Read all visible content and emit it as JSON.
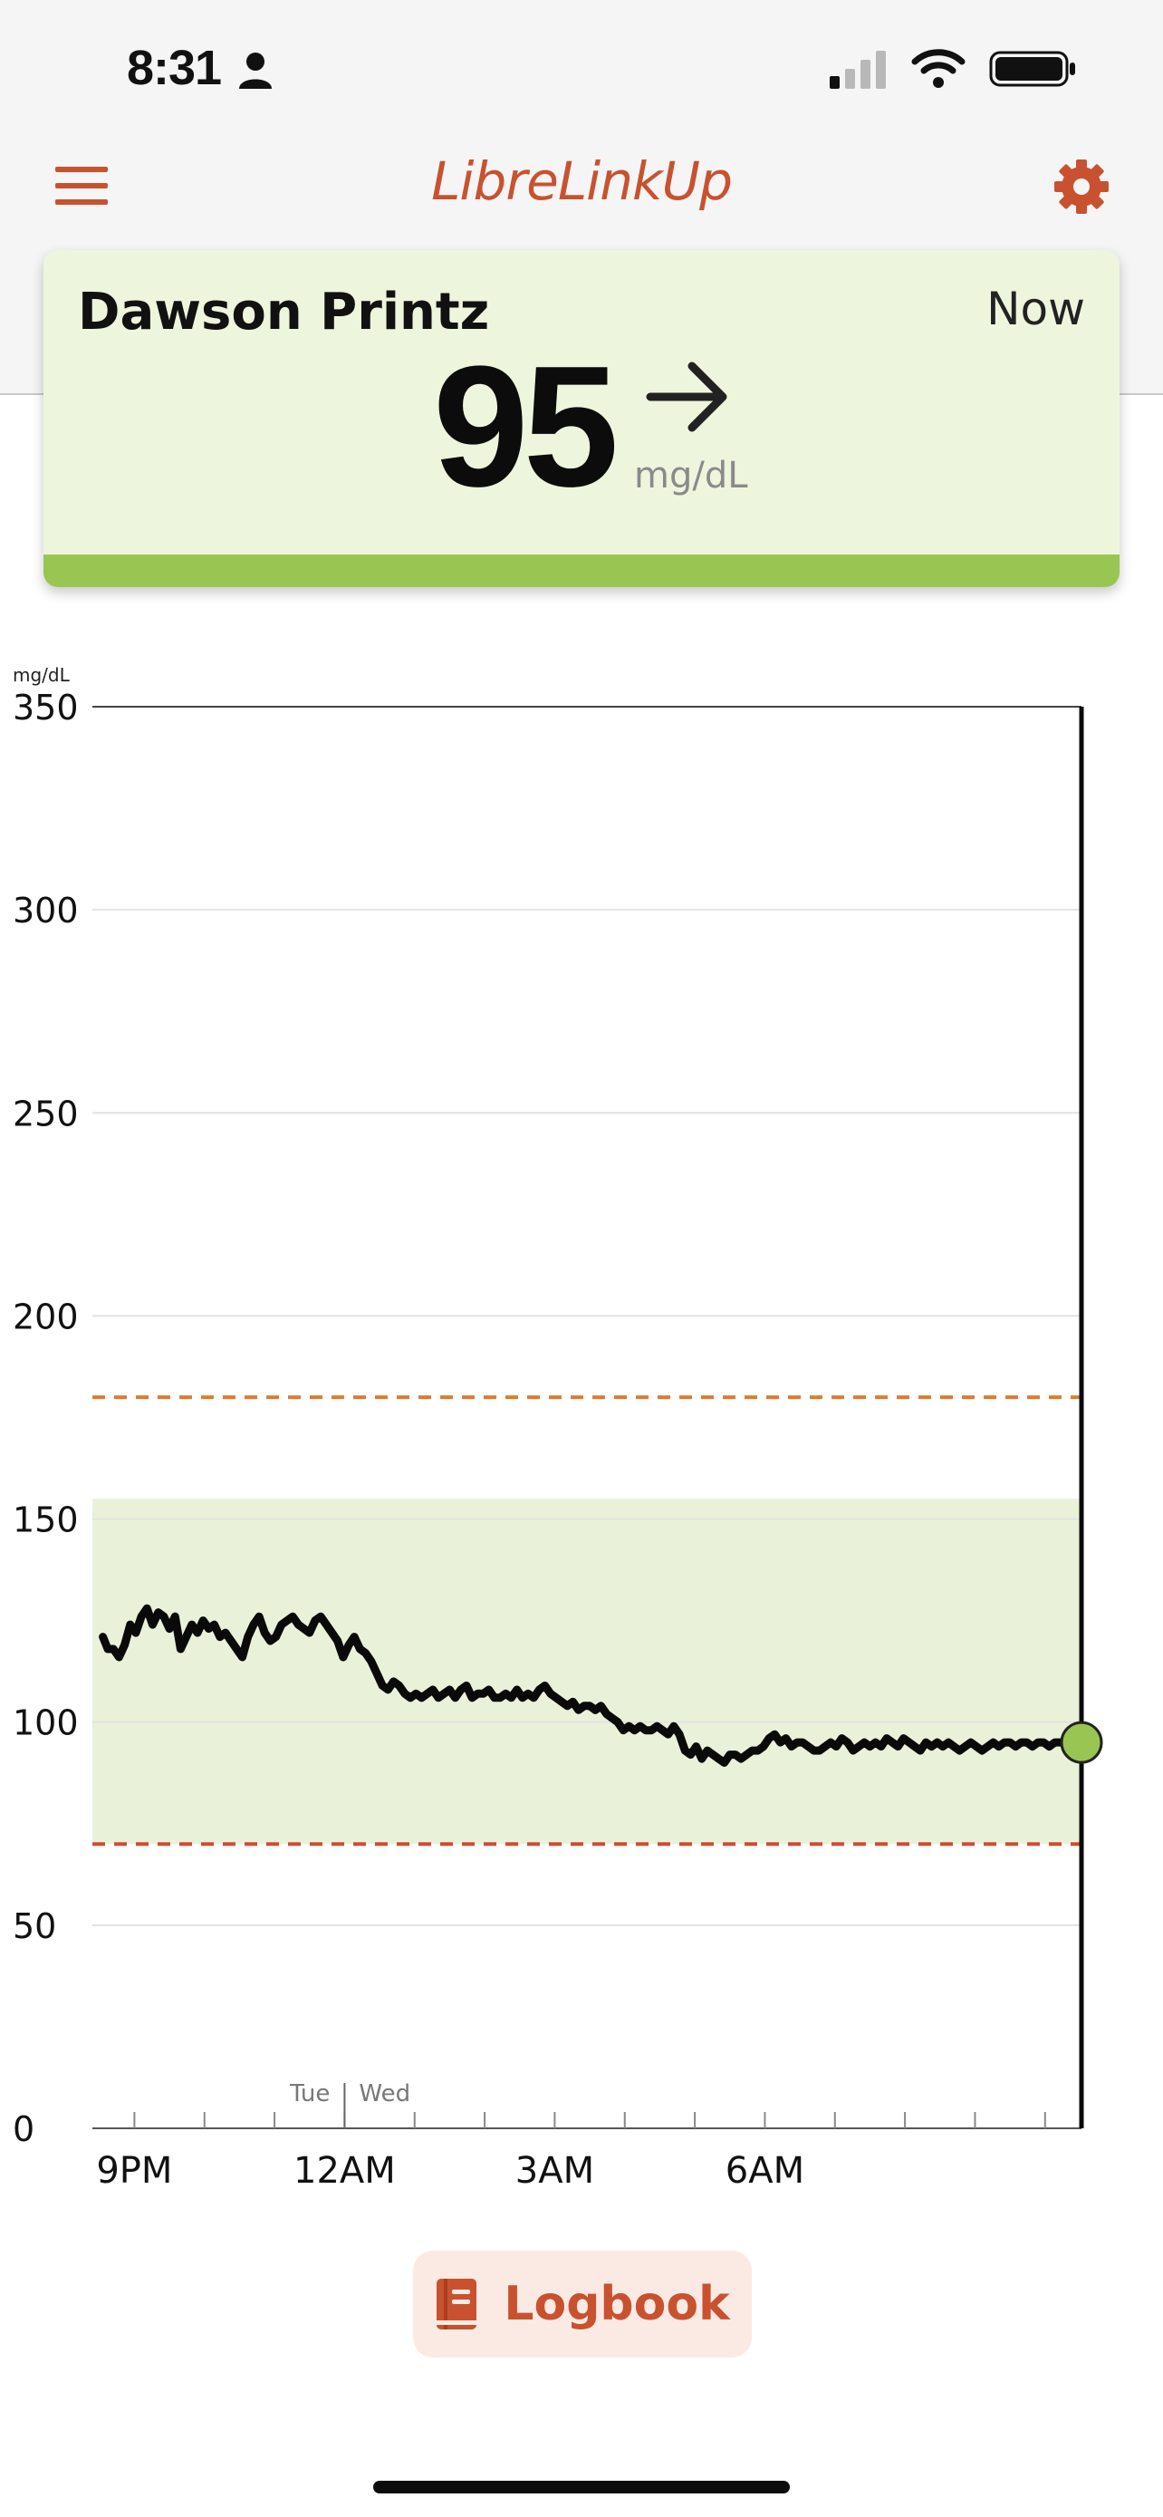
{
  "status_bar": {
    "time": "8:31",
    "battery_level": 1.0,
    "signal_bars_active": 1
  },
  "nav": {
    "title": "LibreLinkUp",
    "menu_icon": "hamburger-menu-icon",
    "settings_icon": "gear-icon"
  },
  "reading": {
    "name": "Dawson Printz",
    "time_label": "Now",
    "value": "95",
    "unit": "mg/dL",
    "trend_icon": "arrow-right-icon",
    "status_color": "#99c552"
  },
  "chart_data": {
    "type": "line",
    "ylabel": "mg/dL",
    "ylim": [
      0,
      350
    ],
    "yticks": [
      "350",
      "300",
      "250",
      "200",
      "150",
      "100",
      "50",
      "0"
    ],
    "xticks": [
      "9PM",
      "12AM",
      "3AM",
      "6AM"
    ],
    "day_labels": {
      "before": "Tue",
      "after": "Wed"
    },
    "target_range": [
      70,
      155
    ],
    "high_threshold": 180,
    "low_threshold": 70,
    "colors": {
      "line": "#0a0a0a",
      "target_band": "#e9f2d9",
      "high_line": "#e07a30",
      "low_line": "#d14a33",
      "current_point": "#99c552"
    },
    "x_hours": [
      20.55,
      20.62,
      20.7,
      20.78,
      20.86,
      20.94,
      21.02,
      21.1,
      21.18,
      21.26,
      21.34,
      21.42,
      21.5,
      21.58,
      21.66,
      21.74,
      21.82,
      21.9,
      21.98,
      22.06,
      22.14,
      22.22,
      22.3,
      22.38,
      22.46,
      22.54,
      22.62,
      22.7,
      22.78,
      22.86,
      22.94,
      23.02,
      23.1,
      23.18,
      23.26,
      23.34,
      23.42,
      23.5,
      23.58,
      23.66,
      23.74,
      23.82,
      23.9,
      23.98,
      24.06,
      24.14,
      24.22,
      24.3,
      24.38,
      24.46,
      24.54,
      24.62,
      24.7,
      24.78,
      24.86,
      24.94,
      25.02,
      25.1,
      25.18,
      25.26,
      25.34,
      25.42,
      25.5,
      25.58,
      25.66,
      25.74,
      25.82,
      25.9,
      25.98,
      26.06,
      26.14,
      26.22,
      26.3,
      26.38,
      26.46,
      26.54,
      26.62,
      26.7,
      26.78,
      26.86,
      26.94,
      27.02,
      27.1,
      27.18,
      27.26,
      27.34,
      27.42,
      27.5,
      27.58,
      27.66,
      27.74,
      27.82,
      27.9,
      27.98,
      28.06,
      28.14,
      28.22,
      28.3,
      28.38,
      28.46,
      28.54,
      28.62,
      28.7,
      28.78,
      28.86,
      28.94,
      29.02,
      29.1,
      29.18,
      29.26,
      29.34,
      29.42,
      29.5,
      29.58,
      29.66,
      29.74,
      29.82,
      29.9,
      29.98,
      30.06,
      30.14,
      30.22,
      30.3,
      30.38,
      30.46,
      30.54,
      30.62,
      30.7,
      30.78,
      30.86,
      30.94,
      31.02,
      31.1,
      31.18,
      31.26,
      31.34,
      31.42,
      31.5,
      31.58,
      31.66,
      31.74,
      31.82,
      31.9,
      31.98,
      32.06,
      32.14,
      32.22,
      32.3,
      32.38,
      32.46,
      32.54,
      32.62,
      32.7,
      32.78,
      32.86,
      32.94,
      33.02,
      33.1,
      33.18,
      33.26,
      33.34,
      33.42,
      33.5,
      33.58,
      33.66,
      33.74,
      33.82,
      33.9,
      33.98,
      34.06,
      34.14,
      34.22,
      34.3,
      34.38,
      34.46,
      34.52
    ],
    "glucose": [
      121,
      118,
      118,
      116,
      119,
      124,
      122,
      126,
      128,
      124,
      127,
      126,
      123,
      126,
      118,
      121,
      124,
      122,
      125,
      123,
      124,
      121,
      122,
      120,
      118,
      116,
      121,
      124,
      126,
      122,
      120,
      121,
      124,
      125,
      126,
      124,
      123,
      122,
      125,
      126,
      124,
      122,
      120,
      116,
      119,
      121,
      118,
      117,
      115,
      112,
      109,
      108,
      110,
      109,
      107,
      106,
      107,
      106,
      107,
      108,
      106,
      107,
      108,
      106,
      108,
      109,
      106,
      107,
      107,
      108,
      106,
      106,
      107,
      106,
      108,
      106,
      107,
      106,
      108,
      109,
      107,
      106,
      105,
      104,
      105,
      103,
      104,
      104,
      103,
      104,
      102,
      101,
      100,
      98,
      99,
      98,
      99,
      98,
      98,
      99,
      98,
      97,
      99,
      97,
      93,
      92,
      94,
      91,
      93,
      92,
      91,
      90,
      92,
      92,
      91,
      92,
      93,
      93,
      94,
      96,
      97,
      95,
      96,
      94,
      95,
      95,
      94,
      93,
      93,
      94,
      95,
      94,
      96,
      95,
      93,
      94,
      95,
      94,
      95,
      94,
      96,
      95,
      94,
      96,
      95,
      94,
      93,
      95,
      94,
      95,
      94,
      95,
      94,
      93,
      94,
      95,
      94,
      93,
      94,
      95,
      94,
      95,
      95,
      94,
      95,
      95,
      94,
      95,
      95,
      94,
      95,
      95,
      95,
      94,
      95
    ],
    "current": {
      "hour": 34.52,
      "value": 95
    }
  },
  "logbook": {
    "label": "Logbook",
    "icon": "book-icon"
  }
}
